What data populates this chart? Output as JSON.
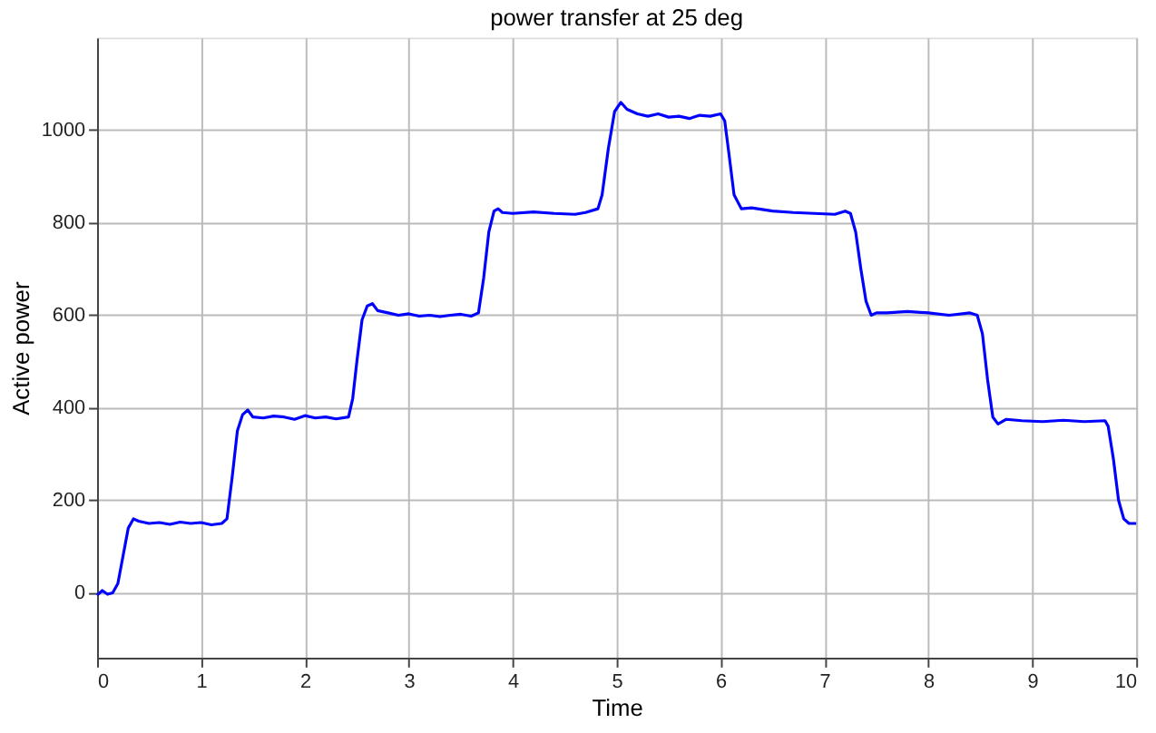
{
  "chart_data": {
    "type": "line",
    "title": "power transfer at 25 deg",
    "xlabel": "Time",
    "ylabel": "Active power",
    "xlim": [
      0,
      10
    ],
    "xticks": [
      0,
      1,
      2,
      3,
      4,
      5,
      6,
      7,
      8,
      9,
      10
    ],
    "ylim": [
      -140,
      1200
    ],
    "yticks": [
      0,
      200,
      400,
      600,
      800,
      1000
    ],
    "grid": true,
    "marker": "none",
    "line_style": "solid",
    "series": [
      {
        "color": "#0000ff",
        "x": [
          0,
          0.05,
          0.1,
          0.15,
          0.2,
          0.25,
          0.3,
          0.35,
          0.4,
          0.5,
          0.6,
          0.7,
          0.8,
          0.9,
          1.0,
          1.1,
          1.2,
          1.25,
          1.3,
          1.35,
          1.4,
          1.45,
          1.5,
          1.6,
          1.7,
          1.8,
          1.9,
          2.0,
          2.1,
          2.2,
          2.3,
          2.42,
          2.46,
          2.5,
          2.55,
          2.6,
          2.65,
          2.7,
          2.8,
          2.9,
          3.0,
          3.1,
          3.2,
          3.3,
          3.4,
          3.5,
          3.6,
          3.67,
          3.72,
          3.77,
          3.82,
          3.86,
          3.9,
          4.0,
          4.2,
          4.4,
          4.6,
          4.7,
          4.82,
          4.86,
          4.92,
          4.98,
          5.04,
          5.1,
          5.2,
          5.3,
          5.4,
          5.5,
          5.6,
          5.7,
          5.8,
          5.9,
          6.0,
          6.04,
          6.08,
          6.13,
          6.2,
          6.3,
          6.5,
          6.7,
          6.9,
          7.1,
          7.2,
          7.25,
          7.3,
          7.35,
          7.4,
          7.45,
          7.5,
          7.6,
          7.8,
          8.0,
          8.2,
          8.4,
          8.47,
          8.52,
          8.57,
          8.62,
          8.67,
          8.75,
          8.9,
          9.1,
          9.3,
          9.5,
          9.7,
          9.73,
          9.78,
          9.83,
          9.88,
          9.93,
          10
        ],
        "values": [
          -5,
          5,
          -3,
          0,
          20,
          80,
          140,
          160,
          155,
          150,
          152,
          148,
          153,
          150,
          152,
          147,
          150,
          160,
          250,
          350,
          385,
          395,
          380,
          378,
          382,
          380,
          375,
          383,
          378,
          380,
          376,
          380,
          420,
          500,
          590,
          620,
          625,
          610,
          605,
          600,
          603,
          598,
          600,
          597,
          600,
          602,
          598,
          605,
          680,
          780,
          825,
          830,
          822,
          820,
          823,
          820,
          818,
          822,
          830,
          860,
          960,
          1040,
          1060,
          1045,
          1035,
          1030,
          1035,
          1028,
          1030,
          1025,
          1032,
          1030,
          1035,
          1020,
          950,
          860,
          830,
          832,
          825,
          822,
          820,
          818,
          825,
          820,
          780,
          700,
          630,
          600,
          605,
          605,
          608,
          605,
          600,
          605,
          600,
          560,
          460,
          380,
          365,
          375,
          372,
          370,
          373,
          370,
          372,
          360,
          290,
          200,
          160,
          150,
          150
        ]
      }
    ]
  }
}
